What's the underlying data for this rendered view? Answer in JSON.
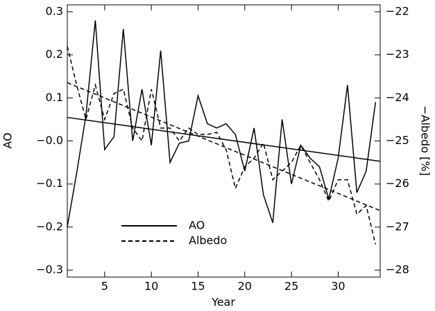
{
  "chart_data": {
    "type": "line",
    "x_label": "Year",
    "y_label": "AO",
    "y2_label": "−Albedo [%]",
    "x": [
      1,
      2,
      3,
      4,
      5,
      6,
      7,
      8,
      9,
      10,
      11,
      12,
      13,
      14,
      15,
      16,
      17,
      18,
      19,
      20,
      21,
      22,
      23,
      24,
      25,
      26,
      27,
      28,
      29,
      30,
      31,
      32,
      33,
      34
    ],
    "series": [
      {
        "name": "AO",
        "color": "#000000",
        "dash": false,
        "trend": true,
        "values": [
          -0.199,
          -0.075,
          0.06,
          0.28,
          -0.02,
          0.01,
          0.26,
          0.0,
          0.12,
          -0.01,
          0.21,
          -0.05,
          -0.005,
          -0.0,
          0.105,
          0.04,
          0.03,
          0.04,
          0.015,
          -0.07,
          0.03,
          -0.125,
          -0.19,
          0.05,
          -0.1,
          -0.01,
          -0.04,
          -0.06,
          -0.135,
          -0.04,
          0.13,
          -0.12,
          -0.07,
          0.09
        ]
      },
      {
        "name": "Albedo",
        "color": "#000000",
        "dash": true,
        "trend": true,
        "axis": "y2",
        "values": [
          -22.8,
          -23.7,
          -24.5,
          -23.7,
          -24.5,
          -23.9,
          -23.8,
          -24.7,
          -25.0,
          -23.8,
          -24.7,
          -24.7,
          -25.0,
          -24.7,
          -24.85,
          -24.85,
          -24.8,
          -25.2,
          -26.1,
          -25.6,
          -25.4,
          -25.05,
          -25.9,
          -25.7,
          -25.5,
          -25.1,
          -25.5,
          -25.9,
          -26.4,
          -25.9,
          -25.9,
          -26.7,
          -26.5,
          -27.4
        ]
      }
    ],
    "xlim": [
      1,
      34.5
    ],
    "xticks": [
      5,
      10,
      15,
      20,
      25,
      30
    ],
    "ylim": [
      -0.316,
      0.316
    ],
    "yticks": [
      {
        "value": -0.3,
        "label": "−0.3"
      },
      {
        "value": -0.2,
        "label": "−0.2"
      },
      {
        "value": -0.1,
        "label": "−0.1"
      },
      {
        "value": 0,
        "label": "−0.0"
      },
      0.1,
      0.2,
      0.3
    ],
    "y2lim": [
      -28.16,
      -21.84
    ],
    "y2ticks": [
      {
        "value": -28,
        "label": "−28"
      },
      {
        "value": -27,
        "label": "−27"
      },
      {
        "value": -26,
        "label": "−26"
      },
      {
        "value": -25,
        "label": "−25"
      },
      {
        "value": -24,
        "label": "−24"
      },
      {
        "value": -23,
        "label": "−23"
      },
      {
        "value": -22,
        "label": "−22"
      }
    ],
    "legend": "lower-center"
  }
}
